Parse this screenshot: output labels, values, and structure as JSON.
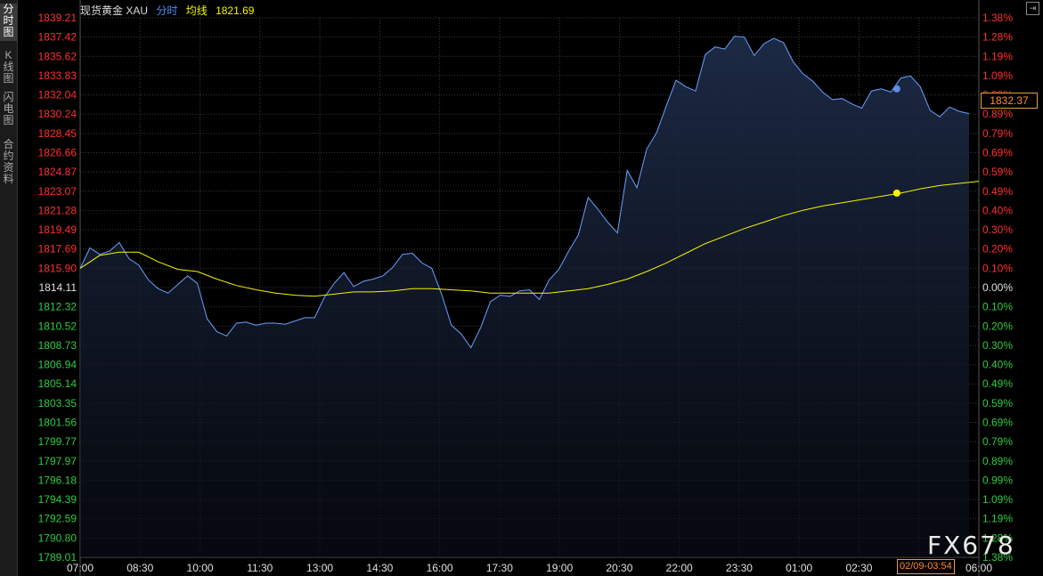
{
  "sidebar": {
    "tabs": [
      {
        "label": "分时图",
        "active": true
      },
      {
        "label": "K线图",
        "active": false
      },
      {
        "label": "闪电图",
        "active": false
      },
      {
        "label": "合约资料",
        "active": false
      }
    ]
  },
  "header": {
    "instrument": "现货黄金 XAU",
    "mode": "分时",
    "avg_label": "均线",
    "avg_value": "1821.69"
  },
  "corner_button": "⇥",
  "last_price": "1832.37",
  "cursor_time": "02/09-03:54",
  "watermark": "FX678",
  "colors": {
    "up": "#ff3030",
    "down": "#2ecc40",
    "price_line": "#6aa0ff",
    "avg_line": "#f5f500",
    "grid": "#3a3a3a"
  },
  "chart_data": {
    "type": "line",
    "y_left_ticks": [
      "1839.21",
      "1837.42",
      "1835.62",
      "1833.83",
      "1832.04",
      "1830.24",
      "1828.45",
      "1826.66",
      "1824.87",
      "1823.07",
      "1821.28",
      "1819.49",
      "1817.69",
      "1815.90",
      "1814.11",
      "1812.32",
      "1810.52",
      "1808.73",
      "1806.94",
      "1805.14",
      "1803.35",
      "1801.56",
      "1799.77",
      "1797.97",
      "1796.18",
      "1794.39",
      "1792.59",
      "1790.80",
      "1789.01"
    ],
    "y_right_ticks": [
      "1.38%",
      "1.28%",
      "1.19%",
      "1.09%",
      "0.99%",
      "0.89%",
      "0.79%",
      "0.69%",
      "0.59%",
      "0.49%",
      "0.40%",
      "0.30%",
      "0.20%",
      "0.10%",
      "0.00%",
      "0.10%",
      "0.20%",
      "0.30%",
      "0.40%",
      "0.49%",
      "0.59%",
      "0.69%",
      "0.79%",
      "0.89%",
      "0.99%",
      "1.09%",
      "1.19%",
      "1.28%",
      "1.38%"
    ],
    "x_ticks": [
      "07:00",
      "08:30",
      "10:00",
      "11:30",
      "13:00",
      "14:30",
      "16:00",
      "17:30",
      "19:00",
      "20:30",
      "22:00",
      "23:30",
      "01:00",
      "02:30",
      "04",
      "06:00"
    ],
    "ylim": [
      1789.01,
      1839.21
    ],
    "prev_close": 1814.11,
    "series": [
      {
        "x": [
          "07:00",
          "07:15",
          "07:30",
          "07:45",
          "08:00",
          "08:15",
          "08:30",
          "08:45",
          "09:00",
          "09:15",
          "09:30",
          "09:45",
          "10:00",
          "10:15",
          "10:30",
          "10:45",
          "11:00",
          "11:15",
          "11:30",
          "11:45",
          "12:00",
          "12:15",
          "12:30",
          "12:45",
          "13:00",
          "13:15",
          "13:30",
          "13:45",
          "14:00",
          "14:15",
          "14:30",
          "14:45",
          "15:00",
          "15:15",
          "15:30",
          "15:45",
          "16:00",
          "16:15",
          "16:30",
          "16:45",
          "17:00",
          "17:15",
          "17:30",
          "17:45",
          "18:00",
          "18:15",
          "18:30",
          "18:45",
          "19:00",
          "19:15",
          "19:30",
          "19:45",
          "20:00",
          "20:15",
          "20:30",
          "20:45",
          "21:00",
          "21:15",
          "21:30",
          "21:45",
          "22:00",
          "22:15",
          "22:30",
          "22:45",
          "23:00",
          "23:15",
          "23:30",
          "23:45",
          "00:00",
          "00:15",
          "00:30",
          "00:45",
          "01:00",
          "01:15",
          "01:30",
          "01:45",
          "02:00",
          "02:15",
          "02:30",
          "02:45",
          "03:00",
          "03:15",
          "03:30",
          "03:45",
          "04:00",
          "04:15",
          "04:30",
          "04:45",
          "05:00",
          "05:15",
          "05:30",
          "05:45"
        ],
        "values": [
          1815.9,
          1817.8,
          1817.2,
          1817.5,
          1818.3,
          1816.8,
          1816.2,
          1814.8,
          1814.0,
          1813.6,
          1814.4,
          1815.2,
          1814.5,
          1811.2,
          1810.0,
          1809.6,
          1810.8,
          1810.9,
          1810.6,
          1810.8,
          1810.8,
          1810.7,
          1811.0,
          1811.3,
          1811.3,
          1813.2,
          1814.5,
          1815.5,
          1814.2,
          1814.7,
          1814.9,
          1815.2,
          1816.0,
          1817.2,
          1817.3,
          1816.4,
          1815.9,
          1813.5,
          1810.6,
          1809.8,
          1808.5,
          1810.4,
          1812.8,
          1813.4,
          1813.3,
          1813.8,
          1813.9,
          1813.0,
          1814.8,
          1815.8,
          1817.5,
          1819.0,
          1822.5,
          1821.4,
          1820.2,
          1819.2,
          1825.0,
          1823.4,
          1827.0,
          1828.5,
          1831.0,
          1833.4,
          1832.8,
          1832.4,
          1835.8,
          1836.5,
          1836.3,
          1837.5,
          1837.4,
          1835.7,
          1836.8,
          1837.3,
          1836.9,
          1835.1,
          1834.0,
          1833.3,
          1832.3,
          1831.6,
          1831.7,
          1831.2,
          1830.8,
          1832.4,
          1832.6,
          1832.3,
          1833.6,
          1833.8,
          1832.8,
          1830.6,
          1830.0,
          1830.9,
          1830.5,
          1830.3
        ]
      },
      {
        "x": [
          "07:00",
          "07:30",
          "08:00",
          "08:30",
          "09:00",
          "09:30",
          "10:00",
          "10:30",
          "11:00",
          "11:30",
          "12:00",
          "12:30",
          "13:00",
          "13:30",
          "14:00",
          "14:30",
          "15:00",
          "15:30",
          "16:00",
          "16:30",
          "17:00",
          "17:30",
          "18:00",
          "18:30",
          "19:00",
          "19:30",
          "20:00",
          "20:30",
          "21:00",
          "21:30",
          "22:00",
          "22:30",
          "23:00",
          "23:30",
          "00:00",
          "00:30",
          "01:00",
          "01:30",
          "02:00",
          "02:30",
          "03:00",
          "03:30",
          "04:00",
          "04:30",
          "05:00",
          "05:30",
          "06:00"
        ],
        "values": [
          1815.9,
          1817.1,
          1817.4,
          1817.4,
          1816.5,
          1815.8,
          1815.6,
          1814.9,
          1814.3,
          1813.9,
          1813.6,
          1813.4,
          1813.3,
          1813.5,
          1813.7,
          1813.7,
          1813.8,
          1814.0,
          1814.0,
          1813.9,
          1813.8,
          1813.6,
          1813.6,
          1813.6,
          1813.6,
          1813.8,
          1814.0,
          1814.4,
          1814.9,
          1815.6,
          1816.4,
          1817.3,
          1818.2,
          1818.9,
          1819.6,
          1820.2,
          1820.8,
          1821.3,
          1821.7,
          1822.0,
          1822.3,
          1822.6,
          1822.9,
          1823.3,
          1823.6,
          1823.8,
          1824.0
        ]
      }
    ]
  }
}
